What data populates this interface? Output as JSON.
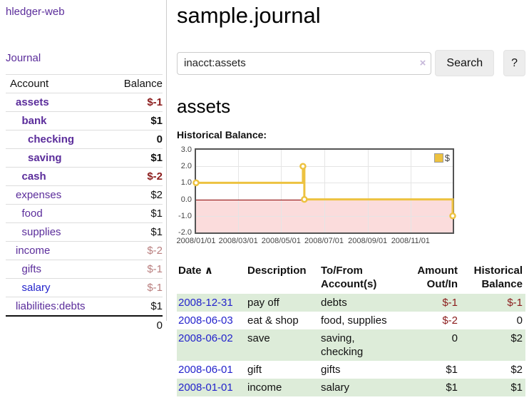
{
  "app": {
    "brand": "hledger-web"
  },
  "colors": {
    "link_purple": "#5b2d9b",
    "link_blue": "#2323cc",
    "negative_strong": "#8b1c1c",
    "negative_faded": "#b97e7e",
    "row_green": "#ddecd9",
    "series_gold": "#edc240",
    "negative_region_pink": "#fbdcdc",
    "zero_line_red": "#8b0000"
  },
  "sidebar": {
    "journal_link": "Journal",
    "header": {
      "account": "Account",
      "balance": "Balance"
    },
    "accounts": [
      {
        "name": "assets",
        "indent": 0,
        "bold": true,
        "balance": "$-1",
        "neg": true,
        "blue": false
      },
      {
        "name": "bank",
        "indent": 1,
        "bold": true,
        "balance": "$1",
        "neg": false,
        "blue": false
      },
      {
        "name": "checking",
        "indent": 2,
        "bold": true,
        "balance": "0",
        "neg": false,
        "blue": false
      },
      {
        "name": "saving",
        "indent": 2,
        "bold": true,
        "balance": "$1",
        "neg": false,
        "blue": false
      },
      {
        "name": "cash",
        "indent": 1,
        "bold": true,
        "balance": "$-2",
        "neg": true,
        "blue": false
      },
      {
        "name": "expenses",
        "indent": 0,
        "bold": false,
        "balance": "$2",
        "neg": false,
        "blue": false
      },
      {
        "name": "food",
        "indent": 1,
        "bold": false,
        "balance": "$1",
        "neg": false,
        "blue": false
      },
      {
        "name": "supplies",
        "indent": 1,
        "bold": false,
        "balance": "$1",
        "neg": false,
        "blue": false
      },
      {
        "name": "income",
        "indent": 0,
        "bold": false,
        "balance": "$-2",
        "neg": true,
        "blue": false
      },
      {
        "name": "gifts",
        "indent": 1,
        "bold": false,
        "balance": "$-1",
        "neg": true,
        "blue": false
      },
      {
        "name": "salary",
        "indent": 1,
        "bold": false,
        "balance": "$-1",
        "neg": true,
        "blue": true
      },
      {
        "name": "liabilities:debts",
        "indent": 0,
        "bold": false,
        "balance": "$1",
        "neg": false,
        "blue": false
      }
    ],
    "total": "0"
  },
  "main": {
    "title": "sample.journal",
    "search": {
      "value": "inacct:assets",
      "clear_icon": "×",
      "search_button": "Search",
      "help_button": "?"
    },
    "account_heading": "assets",
    "chart_title": "Historical Balance:",
    "register": {
      "header": {
        "date": "Date",
        "sort_icon": "∧",
        "description": "Description",
        "tofrom": [
          "To/From",
          "Account(s)"
        ],
        "amount": [
          "Amount",
          "Out/In"
        ],
        "balance": [
          "Historical",
          "Balance"
        ]
      },
      "rows": [
        {
          "date": "2008-12-31",
          "description": "pay off",
          "accounts": [
            "debts"
          ],
          "amount": "$-1",
          "amount_neg": true,
          "balance": "$-1",
          "balance_neg": true,
          "shaded": true
        },
        {
          "date": "2008-06-03",
          "description": "eat & shop",
          "accounts": [
            "food, supplies"
          ],
          "amount": "$-2",
          "amount_neg": true,
          "balance": "0",
          "balance_neg": false,
          "shaded": false
        },
        {
          "date": "2008-06-02",
          "description": "save",
          "accounts": [
            "saving,",
            "checking"
          ],
          "amount": "0",
          "amount_neg": false,
          "balance": "$2",
          "balance_neg": false,
          "shaded": true
        },
        {
          "date": "2008-06-01",
          "description": "gift",
          "accounts": [
            "gifts"
          ],
          "amount": "$1",
          "amount_neg": false,
          "balance": "$2",
          "balance_neg": false,
          "shaded": false
        },
        {
          "date": "2008-01-01",
          "description": "income",
          "accounts": [
            "salary"
          ],
          "amount": "$1",
          "amount_neg": false,
          "balance": "$1",
          "balance_neg": false,
          "shaded": true
        }
      ]
    }
  },
  "chart_data": {
    "type": "line",
    "step": true,
    "title": "Historical Balance:",
    "series": [
      {
        "name": "$",
        "color": "#edc240",
        "points": [
          [
            "2008-01-01",
            1.0
          ],
          [
            "2008-06-01",
            2.0
          ],
          [
            "2008-06-03",
            0.0
          ],
          [
            "2008-12-31",
            -1.0
          ]
        ]
      }
    ],
    "x_range": [
      "2008-01-01",
      "2008-12-31"
    ],
    "ylim": [
      -2.0,
      3.0
    ],
    "y_ticks": [
      3.0,
      2.0,
      1.0,
      0.0,
      -1.0,
      -2.0
    ],
    "x_tick_labels": [
      "2008/01/01",
      "2008/03/01",
      "2008/05/01",
      "2008/07/01",
      "2008/09/01",
      "2008/11/01"
    ],
    "grid": true,
    "legend_position": "top-right",
    "negative_region_color": "#fbdcdc",
    "zero_line_color": "#8b0000"
  }
}
